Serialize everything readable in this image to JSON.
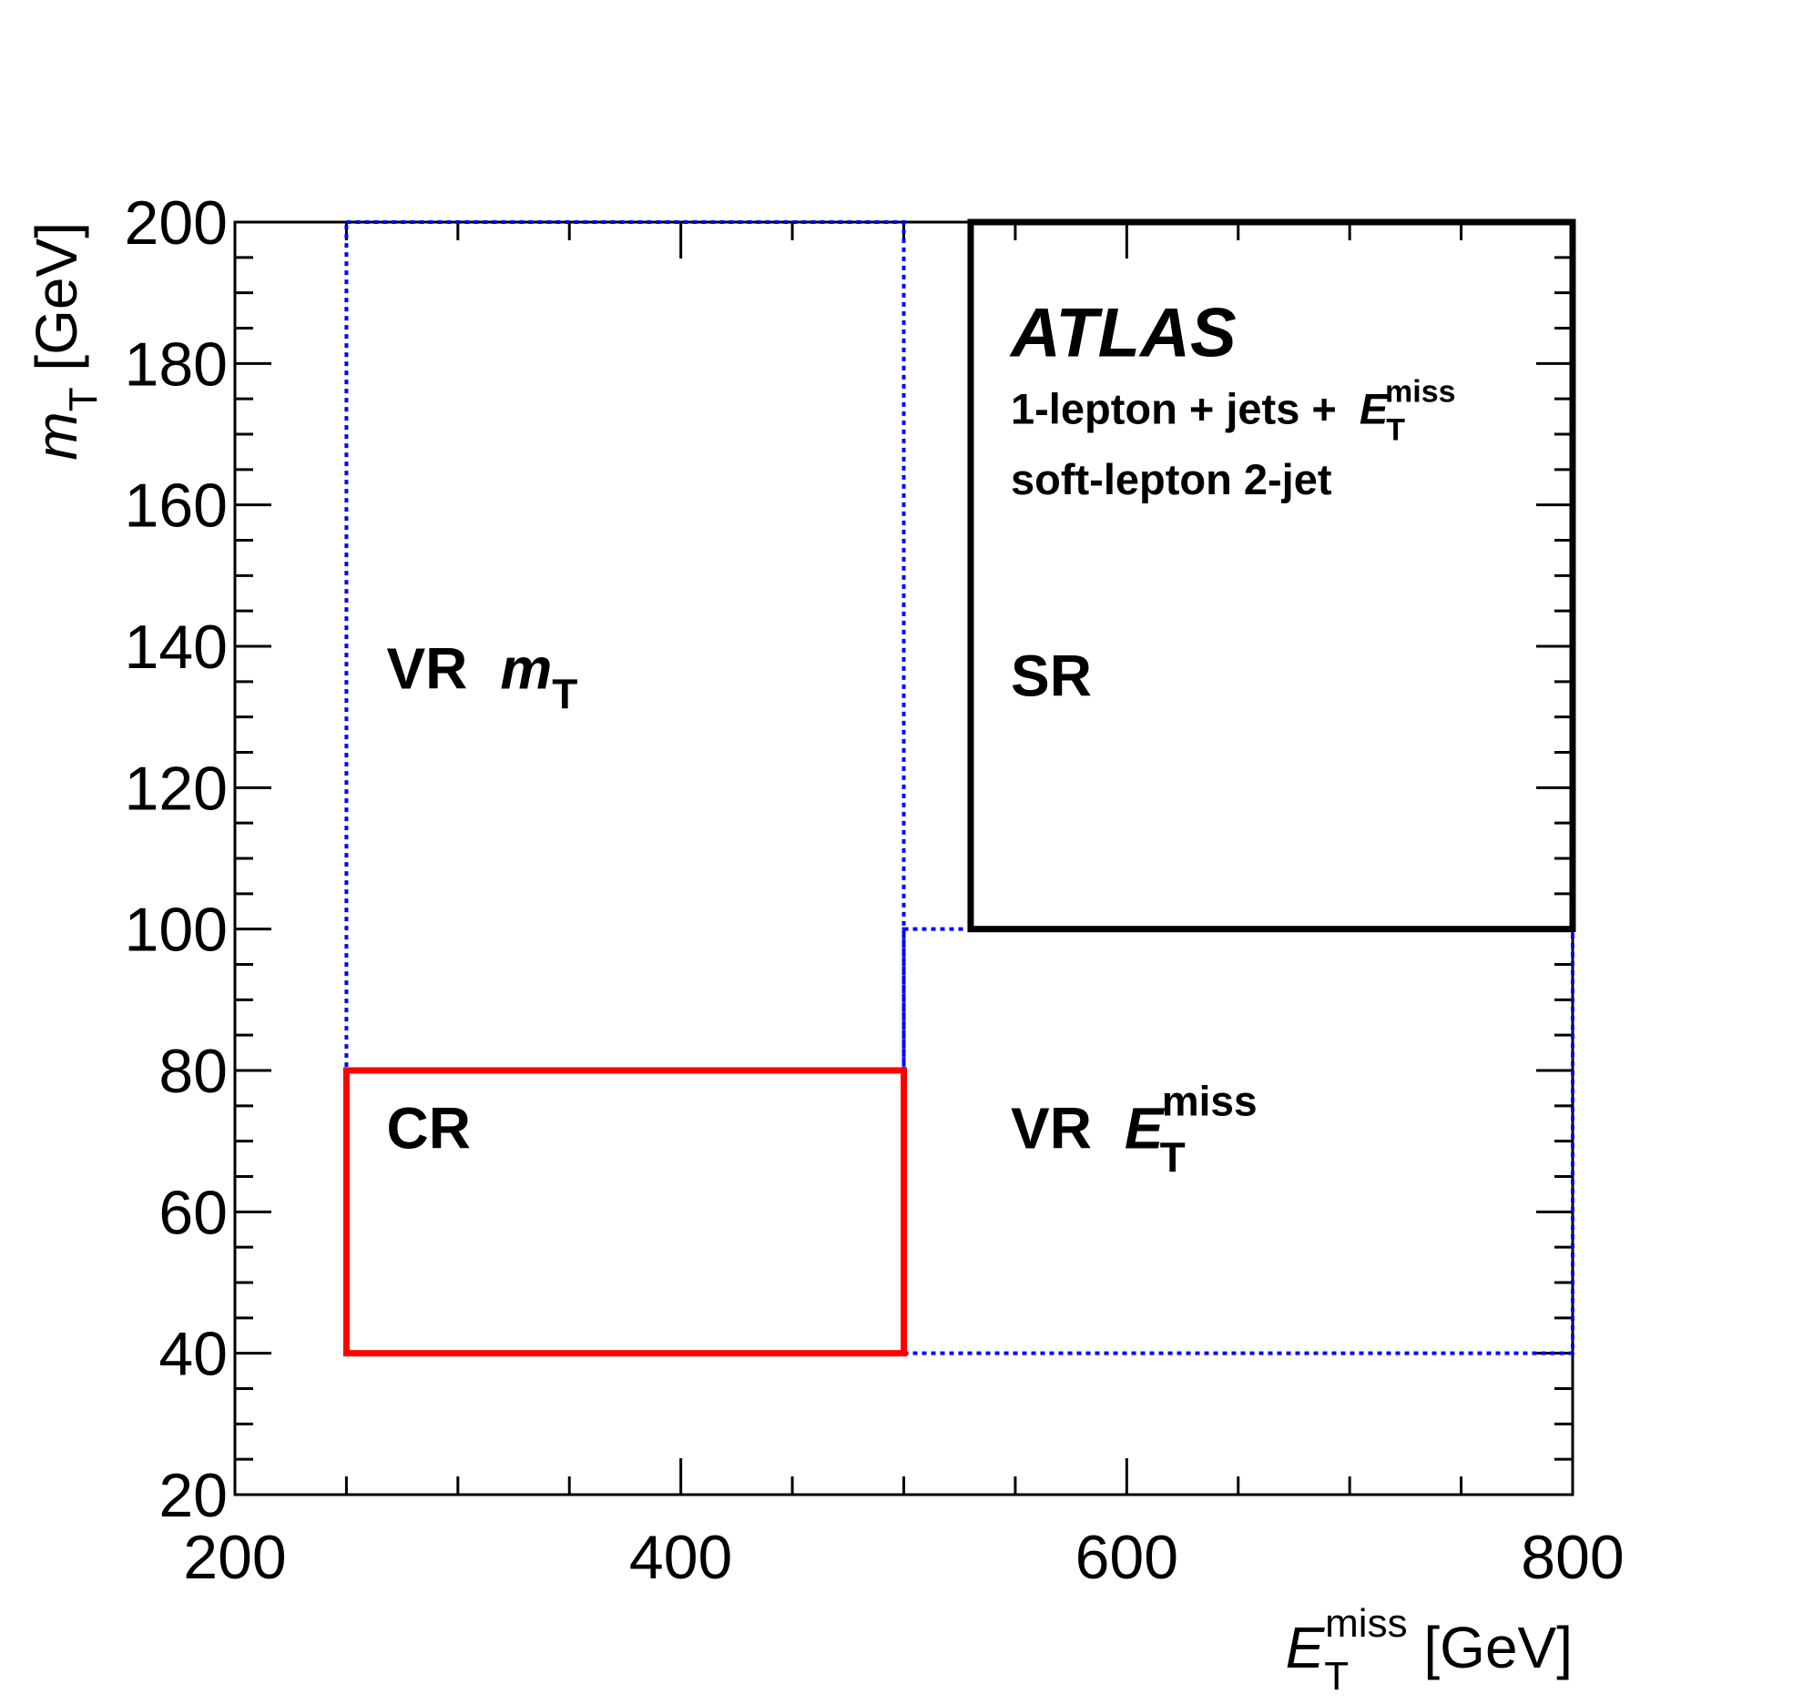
{
  "chart_data": {
    "type": "region-map",
    "experiment": "ATLAS",
    "channel_lines": [
      "1-lepton + jets + ",
      "soft-lepton 2-jet"
    ],
    "channel_symbol": {
      "main": "E",
      "sub": "T",
      "sup": "miss"
    },
    "xaxis": {
      "title_main": "E",
      "title_sub": "T",
      "title_sup": "miss",
      "title_unit": " [GeV]",
      "range": [
        200,
        800
      ],
      "major_ticks": [
        200,
        400,
        600,
        800
      ],
      "minor_step": 50
    },
    "yaxis": {
      "title_main": "m",
      "title_sub": "T",
      "title_unit": " [GeV]",
      "range": [
        20,
        200
      ],
      "major_ticks": [
        20,
        40,
        60,
        80,
        100,
        120,
        140,
        160,
        180,
        200
      ],
      "minor_step": 5
    },
    "regions": [
      {
        "id": "vr-mt",
        "label": "VR",
        "label_symbol": "m",
        "label_sub": "T",
        "label_sup": "",
        "x": [
          250,
          500
        ],
        "y": [
          80,
          200
        ],
        "color": "#0000ff",
        "style": "dotted",
        "label_at": [
          268,
          134
        ]
      },
      {
        "id": "vr-met",
        "label": "VR",
        "label_symbol": "E",
        "label_sub": "T",
        "label_sup": "miss",
        "x": [
          500,
          800
        ],
        "y": [
          40,
          100
        ],
        "color": "#0000ff",
        "style": "dotted",
        "label_at": [
          548,
          69
        ]
      },
      {
        "id": "cr",
        "label": "CR",
        "label_symbol": "",
        "label_sub": "",
        "label_sup": "",
        "x": [
          250,
          500
        ],
        "y": [
          40,
          80
        ],
        "color": "#ff0000",
        "style": "solid",
        "label_at": [
          268,
          69
        ]
      },
      {
        "id": "sr",
        "label": "SR",
        "label_symbol": "",
        "label_sub": "",
        "label_sup": "",
        "x": [
          530,
          800
        ],
        "y": [
          100,
          200
        ],
        "color": "#000000",
        "style": "solid",
        "label_at": [
          548,
          133
        ]
      }
    ]
  }
}
